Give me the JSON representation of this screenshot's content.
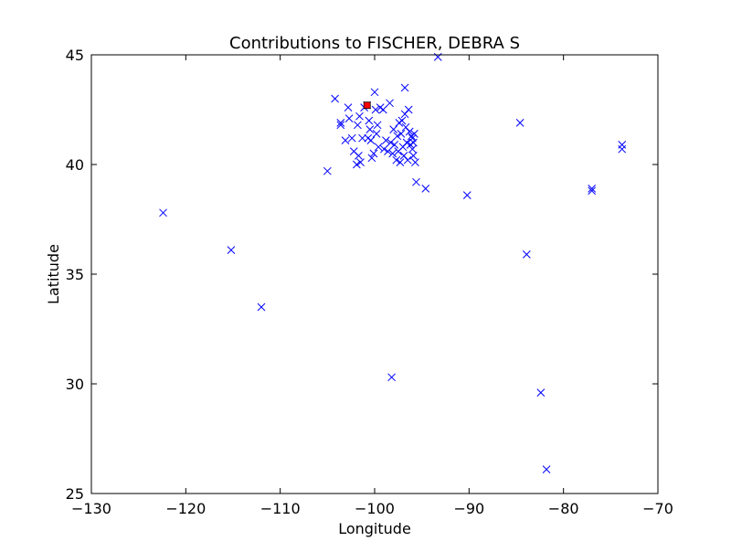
{
  "chart_data": {
    "type": "scatter",
    "title": "Contributions to FISCHER, DEBRA S",
    "xlabel": "Longitude",
    "ylabel": "Latitude",
    "xlim": [
      -130,
      -70
    ],
    "ylim": [
      25,
      45
    ],
    "x_ticks": [
      -130,
      -120,
      -110,
      -100,
      -90,
      -80,
      -70
    ],
    "y_ticks": [
      25,
      30,
      35,
      40,
      45
    ],
    "x_tick_labels": [
      "−130",
      "−120",
      "−110",
      "−100",
      "−90",
      "−80",
      "−70"
    ],
    "y_tick_labels": [
      "25",
      "30",
      "35",
      "40",
      "45"
    ],
    "grid": false,
    "legend": "none",
    "series": [
      {
        "marker": "x",
        "color": "#0000ff",
        "points": [
          [
            -122.4,
            37.8
          ],
          [
            -115.2,
            36.1
          ],
          [
            -112.0,
            33.5
          ],
          [
            -105.0,
            39.7
          ],
          [
            -104.2,
            43.0
          ],
          [
            -103.6,
            41.9
          ],
          [
            -103.6,
            41.8
          ],
          [
            -103.1,
            41.1
          ],
          [
            -102.8,
            42.6
          ],
          [
            -102.7,
            42.1
          ],
          [
            -102.4,
            41.2
          ],
          [
            -102.2,
            40.6
          ],
          [
            -101.9,
            40.0
          ],
          [
            -101.8,
            41.8
          ],
          [
            -101.6,
            42.2
          ],
          [
            -101.7,
            40.4
          ],
          [
            -101.5,
            40.1
          ],
          [
            -101.3,
            41.2
          ],
          [
            -101.1,
            42.6
          ],
          [
            -100.8,
            42.7
          ],
          [
            -100.7,
            41.2
          ],
          [
            -100.6,
            42.0
          ],
          [
            -100.5,
            41.6
          ],
          [
            -100.4,
            41.1
          ],
          [
            -100.3,
            40.3
          ],
          [
            -100.1,
            40.5
          ],
          [
            -100.0,
            43.3
          ],
          [
            -99.9,
            42.5
          ],
          [
            -99.8,
            41.4
          ],
          [
            -99.7,
            41.8
          ],
          [
            -99.6,
            40.8
          ],
          [
            -99.4,
            42.6
          ],
          [
            -99.1,
            42.5
          ],
          [
            -99.0,
            40.7
          ],
          [
            -98.8,
            41.1
          ],
          [
            -98.6,
            40.6
          ],
          [
            -98.4,
            42.8
          ],
          [
            -98.3,
            41.0
          ],
          [
            -98.1,
            40.5
          ],
          [
            -98.0,
            41.6
          ],
          [
            -97.9,
            40.9
          ],
          [
            -97.7,
            40.2
          ],
          [
            -97.6,
            41.3
          ],
          [
            -97.5,
            40.6
          ],
          [
            -97.4,
            41.9
          ],
          [
            -97.3,
            40.1
          ],
          [
            -97.2,
            41.4
          ],
          [
            -97.1,
            42.0
          ],
          [
            -97.0,
            40.8
          ],
          [
            -96.9,
            40.4
          ],
          [
            -96.8,
            43.5
          ],
          [
            -96.8,
            42.3
          ],
          [
            -96.7,
            41.7
          ],
          [
            -96.6,
            41.0
          ],
          [
            -96.5,
            40.2
          ],
          [
            -96.4,
            42.5
          ],
          [
            -96.3,
            41.5
          ],
          [
            -96.2,
            40.9
          ],
          [
            -96.1,
            41.3
          ],
          [
            -96.0,
            41.2
          ],
          [
            -96.0,
            40.7
          ],
          [
            -95.9,
            41.0
          ],
          [
            -95.9,
            40.4
          ],
          [
            -95.8,
            41.4
          ],
          [
            -95.7,
            40.1
          ],
          [
            -95.6,
            39.2
          ],
          [
            -94.6,
            38.9
          ],
          [
            -93.3,
            44.9
          ],
          [
            -90.2,
            38.6
          ],
          [
            -98.2,
            30.3
          ],
          [
            -84.6,
            41.9
          ],
          [
            -83.9,
            35.9
          ],
          [
            -82.4,
            29.6
          ],
          [
            -81.8,
            26.1
          ],
          [
            -77.0,
            38.9
          ],
          [
            -77.0,
            38.8
          ],
          [
            -73.8,
            40.9
          ],
          [
            -73.8,
            40.7
          ]
        ]
      },
      {
        "marker": "square",
        "color": "#ff0000",
        "points": [
          [
            -100.8,
            42.7
          ]
        ]
      }
    ]
  }
}
